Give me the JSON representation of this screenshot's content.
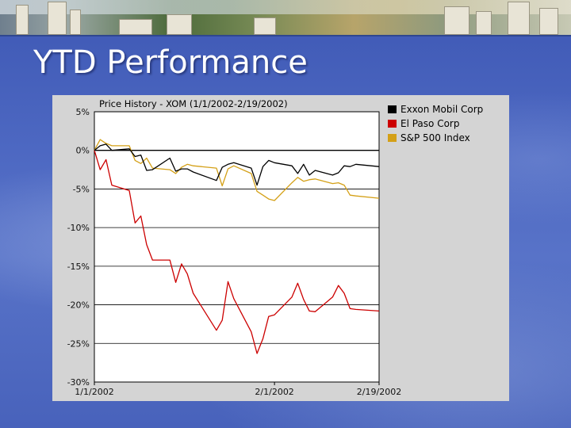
{
  "slide": {
    "title": "YTD Performance"
  },
  "chart_data": {
    "type": "line",
    "title": "Price History - XOM (1/1/2002-2/19/2002)",
    "xlabel": "",
    "ylabel": "",
    "x_ticks": [
      "1/1/2002",
      "2/1/2002",
      "2/19/2002"
    ],
    "y_ticks": [
      "5%",
      "0%",
      "-5%",
      "-10%",
      "-15%",
      "-20%",
      "-25%",
      "-30%"
    ],
    "ylim": [
      -30,
      5
    ],
    "grid": true,
    "legend_position": "right",
    "x": [
      "2002-01-01",
      "2002-01-02",
      "2002-01-03",
      "2002-01-04",
      "2002-01-07",
      "2002-01-08",
      "2002-01-09",
      "2002-01-10",
      "2002-01-11",
      "2002-01-14",
      "2002-01-15",
      "2002-01-16",
      "2002-01-17",
      "2002-01-18",
      "2002-01-22",
      "2002-01-23",
      "2002-01-24",
      "2002-01-25",
      "2002-01-28",
      "2002-01-29",
      "2002-01-30",
      "2002-01-31",
      "2002-02-01",
      "2002-02-04",
      "2002-02-05",
      "2002-02-06",
      "2002-02-07",
      "2002-02-08",
      "2002-02-11",
      "2002-02-12",
      "2002-02-13",
      "2002-02-14",
      "2002-02-15",
      "2002-02-19"
    ],
    "series": [
      {
        "name": "Exxon Mobil Corp",
        "color": "#000000",
        "values": [
          0,
          0.6,
          0.8,
          0,
          0.2,
          -0.8,
          -0.6,
          -2.6,
          -2.5,
          -1.0,
          -2.7,
          -2.4,
          -2.4,
          -2.8,
          -3.9,
          -2.2,
          -1.8,
          -1.6,
          -2.3,
          -4.5,
          -2.1,
          -1.3,
          -1.6,
          -2.0,
          -3.0,
          -1.8,
          -3.2,
          -2.6,
          -3.2,
          -2.9,
          -2.0,
          -2.1,
          -1.8,
          -2.1
        ]
      },
      {
        "name": "El Paso Corp",
        "color": "#cc0000",
        "values": [
          0,
          -2.5,
          -1.2,
          -4.5,
          -5.2,
          -9.4,
          -8.5,
          -12.2,
          -14.2,
          -14.2,
          -17.1,
          -14.7,
          -16.0,
          -18.5,
          -23.3,
          -22.0,
          -17.0,
          -19.2,
          -23.5,
          -26.3,
          -24.4,
          -21.5,
          -21.3,
          -19.0,
          -17.2,
          -19.3,
          -20.8,
          -20.9,
          -19.0,
          -17.5,
          -18.5,
          -20.5,
          -20.6,
          -20.8
        ]
      },
      {
        "name": "S&P 500 Index",
        "color": "#d4a017",
        "values": [
          0,
          1.4,
          0.9,
          0.6,
          0.6,
          -1.3,
          -1.7,
          -1.0,
          -2.3,
          -2.5,
          -3.0,
          -2.2,
          -1.8,
          -2.0,
          -2.3,
          -4.6,
          -2.4,
          -2.0,
          -3.0,
          -5.3,
          -5.8,
          -6.3,
          -6.5,
          -4.2,
          -3.5,
          -4.0,
          -3.8,
          -3.7,
          -4.3,
          -4.2,
          -4.5,
          -5.8,
          -5.9,
          -6.2
        ]
      }
    ]
  }
}
